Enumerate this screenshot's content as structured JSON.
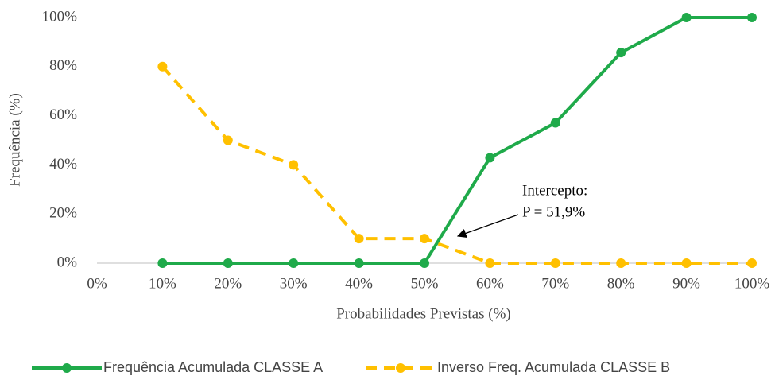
{
  "chart_data": {
    "type": "line",
    "x_label": "Probabilidades Previstas (%)",
    "y_label": "Frequência (%)",
    "x": [
      10,
      20,
      30,
      40,
      50,
      60,
      70,
      80,
      90,
      100
    ],
    "series": [
      {
        "name": "Frequência Acumulada CLASSE A",
        "color": "#1faa4a",
        "dash": false,
        "values": [
          0,
          0,
          0,
          0,
          0,
          42.9,
          57.1,
          85.7,
          100,
          100
        ]
      },
      {
        "name": "Inverso Freq. Acumulada CLASSE B",
        "color": "#ffc000",
        "dash": true,
        "values": [
          80,
          50,
          40,
          10,
          10,
          0,
          0,
          0,
          0,
          0
        ]
      }
    ],
    "xlim": [
      0,
      100
    ],
    "xticks": [
      {
        "value": 0,
        "label": "0%"
      },
      {
        "value": 10,
        "label": "10%"
      },
      {
        "value": 20,
        "label": "20%"
      },
      {
        "value": 30,
        "label": "30%"
      },
      {
        "value": 40,
        "label": "40%"
      },
      {
        "value": 50,
        "label": "50%"
      },
      {
        "value": 60,
        "label": "60%"
      },
      {
        "value": 70,
        "label": "70%"
      },
      {
        "value": 80,
        "label": "80%"
      },
      {
        "value": 90,
        "label": "90%"
      },
      {
        "value": 100,
        "label": "100%"
      }
    ],
    "ylim": [
      0,
      100
    ],
    "yticks": [
      {
        "value": 0,
        "label": "0%"
      },
      {
        "value": 20,
        "label": "20%"
      },
      {
        "value": 40,
        "label": "40%"
      },
      {
        "value": 60,
        "label": "60%"
      },
      {
        "value": 80,
        "label": "80%"
      },
      {
        "value": 100,
        "label": "100%"
      }
    ],
    "annotation": [
      "Intercepto:",
      "P = 51,9%"
    ]
  }
}
